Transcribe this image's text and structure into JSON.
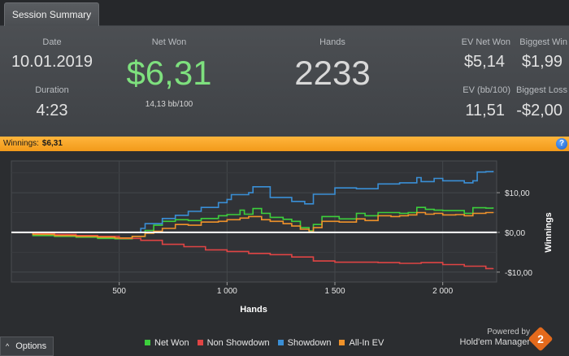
{
  "tab": {
    "label": "Session Summary"
  },
  "summary": {
    "date_label": "Date",
    "date_value": "10.01.2019",
    "duration_label": "Duration",
    "duration_value": "4:23",
    "net_won_label": "Net Won",
    "net_won_value": "$6,31",
    "net_won_sub": "14,13 bb/100",
    "hands_label": "Hands",
    "hands_value": "2233",
    "ev_net_won_label": "EV Net Won",
    "ev_net_won_value": "$5,14",
    "biggest_win_label": "Biggest Win",
    "biggest_win_value": "$1,99",
    "ev_bb_label": "EV (bb/100)",
    "ev_bb_value": "11,51",
    "biggest_loss_label": "Biggest Loss",
    "biggest_loss_value": "-$2,00"
  },
  "winbar": {
    "label": "Winnings:",
    "value": "$6,31",
    "help_icon": "help-icon",
    "help_glyph": "?"
  },
  "colors": {
    "net_won": "#3ccf3c",
    "non_showdown": "#e04444",
    "showdown": "#3a8fd6",
    "allin_ev": "#f0922a",
    "winbar": "#f5a623",
    "net_won_value": "#7ee07e"
  },
  "chart_data": {
    "type": "line",
    "xlabel": "Hands",
    "ylabel": "Winnings",
    "xlim": [
      0,
      2250
    ],
    "ylim": [
      -12.5,
      18
    ],
    "x_ticks": [
      500,
      1000,
      1500,
      2000
    ],
    "x_tick_labels": [
      "500",
      "1 000",
      "1 500",
      "2 000"
    ],
    "y_ticks": [
      10,
      0,
      -10
    ],
    "y_tick_labels": [
      "$10,00",
      "$0,00",
      "-$10,00"
    ],
    "grid": true,
    "legend": "bottom",
    "series": [
      {
        "name": "Net Won",
        "color": "#3ccf3c",
        "x": [
          0,
          100,
          200,
          300,
          400,
          480,
          560,
          620,
          660,
          700,
          760,
          820,
          880,
          960,
          1000,
          1060,
          1080,
          1120,
          1160,
          1200,
          1260,
          1300,
          1340,
          1380,
          1400,
          1440,
          1520,
          1600,
          1640,
          1700,
          1760,
          1800,
          1840,
          1880,
          1920,
          1960,
          2000,
          2060,
          2100,
          2140,
          2200,
          2233
        ],
        "y": [
          0,
          -0.8,
          -1,
          -1.2,
          -1.5,
          -1.6,
          -1,
          0.5,
          1.8,
          2.8,
          3.2,
          3.0,
          3.5,
          4.2,
          4.5,
          5.6,
          4.6,
          6.0,
          4.8,
          3.8,
          3.3,
          2.8,
          1.2,
          0.4,
          2.0,
          4.0,
          3.4,
          4.8,
          4.2,
          5.0,
          5.0,
          4.8,
          5.0,
          6.3,
          5.8,
          5.6,
          5.5,
          5.5,
          4.8,
          6.2,
          6.1,
          6.31
        ]
      },
      {
        "name": "Non Showdown",
        "color": "#e04444",
        "x": [
          0,
          100,
          200,
          300,
          400,
          500,
          600,
          700,
          800,
          900,
          1000,
          1100,
          1200,
          1300,
          1400,
          1500,
          1600,
          1700,
          1800,
          1900,
          2000,
          2100,
          2200,
          2233
        ],
        "y": [
          0,
          -0.3,
          -0.5,
          -0.8,
          -1.0,
          -1.5,
          -2.0,
          -3.0,
          -3.6,
          -4.4,
          -4.8,
          -5.3,
          -5.6,
          -6.2,
          -7.2,
          -7.5,
          -7.5,
          -7.6,
          -7.8,
          -7.6,
          -8.1,
          -8.5,
          -9.1,
          -9.0
        ]
      },
      {
        "name": "Showdown",
        "color": "#3a8fd6",
        "x": [
          0,
          200,
          400,
          500,
          600,
          620,
          700,
          760,
          820,
          880,
          960,
          1000,
          1020,
          1100,
          1120,
          1200,
          1300,
          1360,
          1400,
          1500,
          1600,
          1700,
          1800,
          1880,
          1900,
          1960,
          2000,
          2100,
          2140,
          2160,
          2200,
          2233
        ],
        "y": [
          0,
          0,
          0,
          0,
          1.0,
          2.2,
          3.5,
          4.3,
          5.3,
          6.3,
          7.5,
          8.3,
          9.5,
          10.0,
          11.5,
          8.8,
          7.8,
          7.2,
          9.6,
          11.2,
          11.0,
          12.2,
          12.5,
          13.8,
          12.8,
          13.6,
          13.0,
          12.5,
          13.0,
          15.2,
          15.3,
          15.5
        ]
      },
      {
        "name": "All-In EV",
        "color": "#f0922a",
        "x": [
          0,
          100,
          200,
          300,
          400,
          480,
          560,
          620,
          660,
          700,
          760,
          820,
          880,
          960,
          1000,
          1060,
          1100,
          1160,
          1200,
          1260,
          1300,
          1340,
          1380,
          1400,
          1440,
          1520,
          1600,
          1640,
          1700,
          1760,
          1800,
          1840,
          1880,
          1920,
          1960,
          2000,
          2060,
          2100,
          2140,
          2200,
          2233
        ],
        "y": [
          0,
          -0.5,
          -0.8,
          -1.0,
          -1.2,
          -1.4,
          -1.0,
          -0.2,
          0.3,
          1.0,
          2.0,
          1.8,
          2.6,
          2.8,
          3.2,
          3.6,
          4.0,
          3.2,
          2.8,
          2.2,
          1.6,
          0.8,
          0.2,
          1.2,
          2.8,
          2.6,
          3.4,
          3.0,
          4.2,
          4.0,
          4.2,
          4.4,
          5.0,
          4.6,
          4.8,
          4.4,
          4.5,
          4.2,
          4.8,
          5.0,
          5.14
        ]
      }
    ],
    "zero_line": true
  },
  "legend": [
    {
      "label": "Net Won",
      "color": "#3ccf3c"
    },
    {
      "label": "Non Showdown",
      "color": "#e04444"
    },
    {
      "label": "Showdown",
      "color": "#3a8fd6"
    },
    {
      "label": "All-In EV",
      "color": "#f0922a"
    }
  ],
  "footer": {
    "options_label": "Options",
    "options_icon": "caret-up-icon",
    "options_glyph": "^",
    "powered_by": "Powered by",
    "brand": "Hold'em Manager",
    "logo_glyph": "2"
  }
}
